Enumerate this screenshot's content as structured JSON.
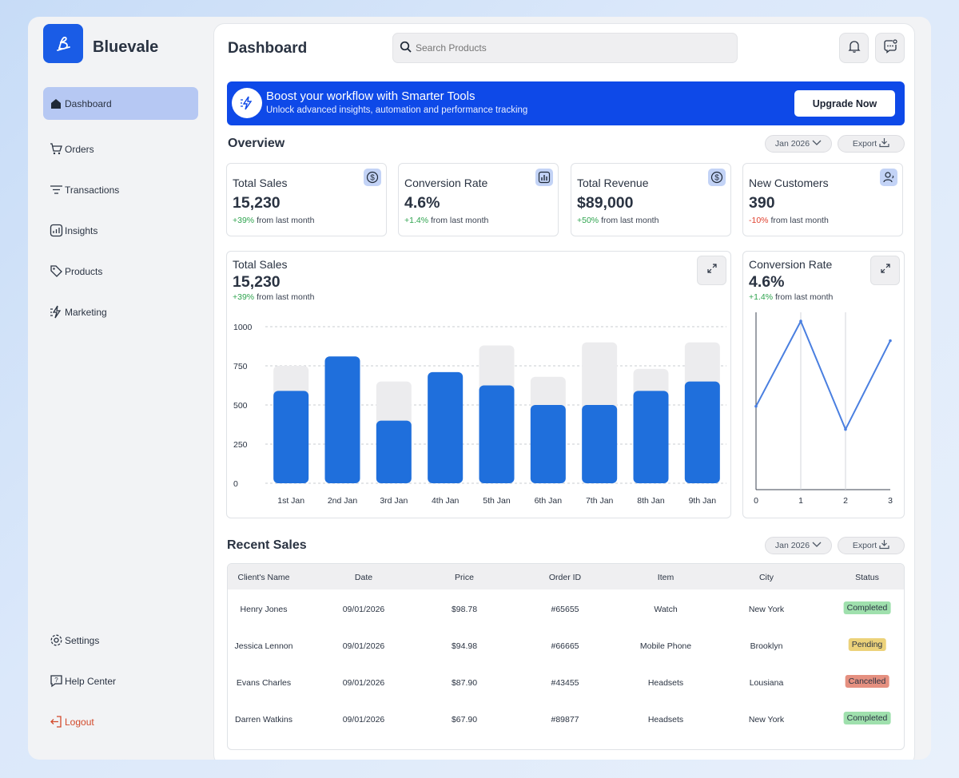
{
  "app": {
    "name": "Bluevale"
  },
  "sidebar": {
    "items": [
      {
        "label": "Dashboard",
        "icon": "home-icon",
        "active": true
      },
      {
        "label": "Orders",
        "icon": "cart-icon"
      },
      {
        "label": "Transactions",
        "icon": "filter-lines-icon"
      },
      {
        "label": "Insights",
        "icon": "chart-icon"
      },
      {
        "label": "Products",
        "icon": "tag-icon"
      },
      {
        "label": "Marketing",
        "icon": "lightning-icon"
      }
    ],
    "bottom": [
      {
        "label": "Settings",
        "icon": "gear-icon"
      },
      {
        "label": "Help Center",
        "icon": "help-icon"
      },
      {
        "label": "Logout",
        "icon": "logout-icon"
      }
    ]
  },
  "header": {
    "title": "Dashboard",
    "search_placeholder": "Search Products"
  },
  "banner": {
    "title": "Boost your workflow with Smarter Tools",
    "subtitle": "Unlock advanced insights, automation and performance tracking",
    "cta": "Upgrade Now"
  },
  "overview": {
    "title": "Overview",
    "period": "Jan 2026",
    "export": "Export",
    "cards": [
      {
        "label": "Total Sales",
        "value": "15,230",
        "change": "+39%",
        "suffix": "from last month",
        "trend": "up",
        "icon": "dollar-icon"
      },
      {
        "label": "Conversion Rate",
        "value": "4.6%",
        "change": "+1.4%",
        "suffix": "from last month",
        "trend": "up",
        "icon": "bar-chart-icon"
      },
      {
        "label": "Total Revenue",
        "value": "$89,000",
        "change": "+50%",
        "suffix": "from last month",
        "trend": "up",
        "icon": "dollar-icon"
      },
      {
        "label": "New Customers",
        "value": "390",
        "change": "-10%",
        "suffix": "from last month",
        "trend": "down",
        "icon": "user-icon"
      }
    ]
  },
  "sales_chart": {
    "label": "Total Sales",
    "value": "15,230",
    "change": "+39%",
    "suffix": "from last month"
  },
  "conversion_chart": {
    "label": "Conversion Rate",
    "value": "4.6%",
    "change": "+1.4%",
    "suffix": "from last month"
  },
  "chart_data": [
    {
      "type": "bar",
      "categories": [
        "1st Jan",
        "2nd Jan",
        "3rd Jan",
        "4th Jan",
        "5th Jan",
        "6th Jan",
        "7th Jan",
        "8th Jan",
        "9th Jan"
      ],
      "series": [
        {
          "values": [
            590,
            810,
            400,
            710,
            625,
            500,
            500,
            590,
            650
          ]
        },
        {
          "values": [
            750,
            810,
            650,
            710,
            880,
            680,
            900,
            730,
            900
          ]
        }
      ],
      "ylim": [
        0,
        1000
      ],
      "yticks": [
        0,
        250,
        500,
        750,
        1000
      ],
      "grid": true,
      "colors": {
        "bar": "#1f6fdc",
        "background_bar": "#ececee"
      }
    },
    {
      "type": "line",
      "x": [
        0,
        1,
        2,
        3
      ],
      "values": [
        0.47,
        0.95,
        0.34,
        0.84
      ],
      "xticks": [
        0,
        1,
        2,
        3
      ],
      "ylim": [
        0,
        1
      ],
      "grid": true,
      "colors": {
        "line": "#4a7fe0"
      }
    }
  ],
  "recent_sales": {
    "title": "Recent Sales",
    "period": "Jan 2026",
    "export": "Export",
    "columns": [
      "Client's Name",
      "Date",
      "Price",
      "Order ID",
      "Item",
      "City",
      "Status"
    ],
    "rows": [
      {
        "name": "Henry Jones",
        "date": "09/01/2026",
        "price": "$98.78",
        "order": "#65655",
        "item": "Watch",
        "city": "New York",
        "status": "Completed",
        "status_type": "completed"
      },
      {
        "name": "Jessica Lennon",
        "date": "09/01/2026",
        "price": "$94.98",
        "order": "#66665",
        "item": "Mobile Phone",
        "city": "Brooklyn",
        "status": "Pending",
        "status_type": "pending"
      },
      {
        "name": "Evans Charles",
        "date": "09/01/2026",
        "price": "$87.90",
        "order": "#43455",
        "item": "Headsets",
        "city": "Lousiana",
        "status": "Cancelled",
        "status_type": "cancelled"
      },
      {
        "name": "Darren Watkins",
        "date": "09/01/2026",
        "price": "$67.90",
        "order": "#89877",
        "item": "Headsets",
        "city": "New York",
        "status": "Completed",
        "status_type": "completed"
      }
    ]
  }
}
